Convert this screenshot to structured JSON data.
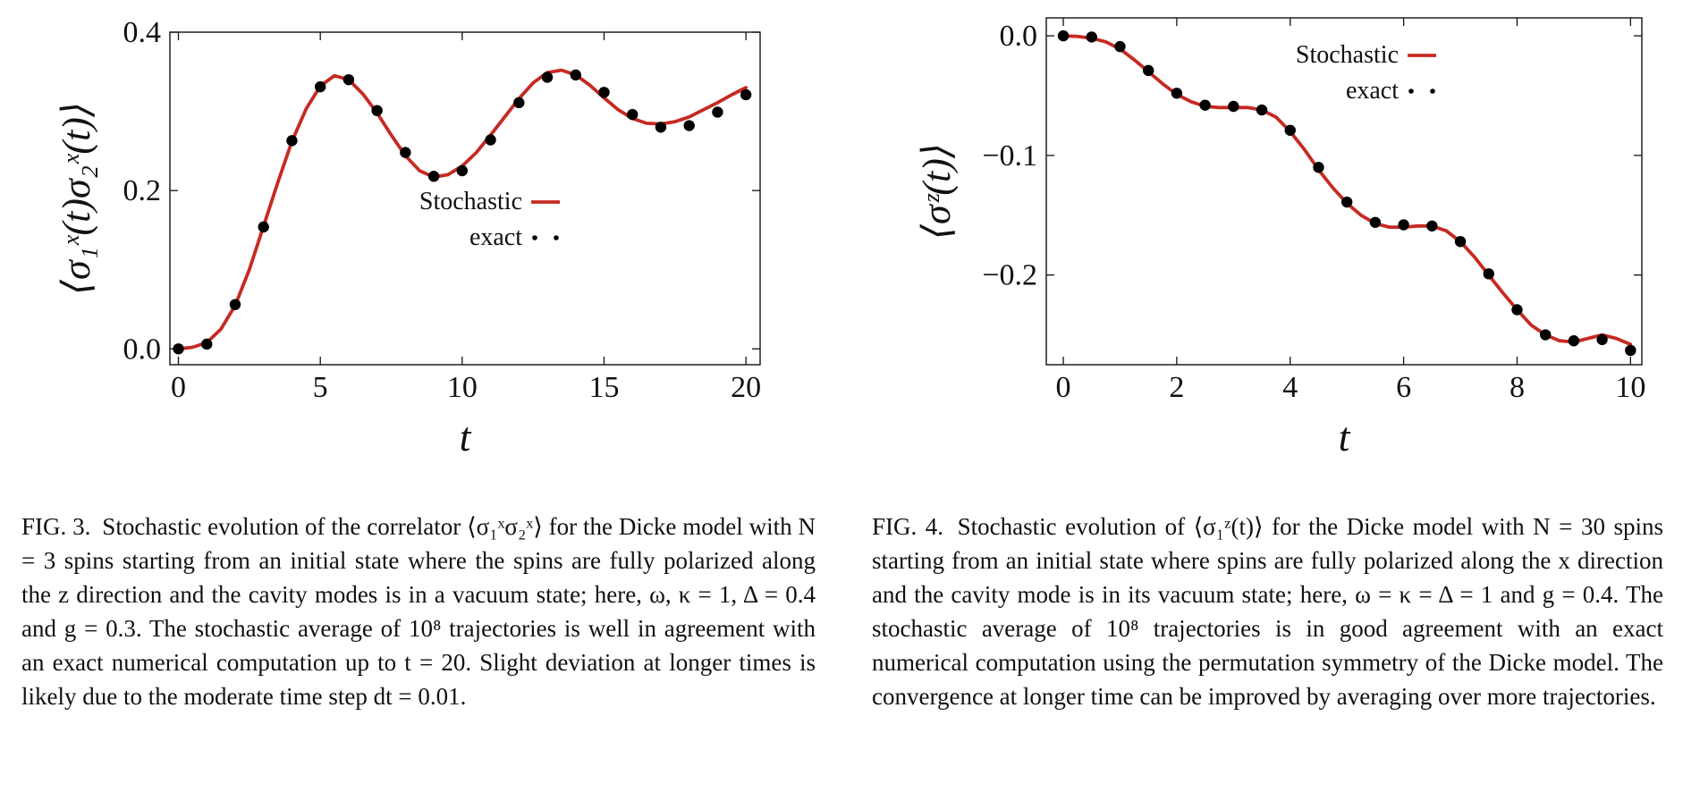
{
  "colors": {
    "stochastic": "#c62a22",
    "exact": "#000000",
    "axes": "#111111"
  },
  "figures": [
    {
      "id": "fig3",
      "ylabel": "⟨σ₁ˣ(t)σ₂ˣ(t)⟩",
      "caption": {
        "label": "FIG. 3.",
        "text": "Stochastic evolution of the correlator ⟨σ₁ˣσ₂ˣ⟩ for the Dicke model with N = 3 spins starting from an initial state where the spins are fully polarized along the z direction and the cavity modes is in a vacuum state; here, ω, κ = 1, Δ = 0.4 and g = 0.3. The stochastic average of 10⁸ trajectories is well in agreement with an exact numerical computation up to t = 20. Slight deviation at longer times is likely due to the moderate time step dt = 0.01."
      }
    },
    {
      "id": "fig4",
      "ylabel": "⟨σᶻ(t)⟩",
      "caption": {
        "label": "FIG. 4.",
        "text": "Stochastic evolution of ⟨σ₁ᶻ(t)⟩ for the Dicke model with N = 30 spins starting from an initial state where spins are fully polarized along the x direction and the cavity mode is in its vacuum state; here, ω = κ = Δ = 1 and g = 0.4. The stochastic average of 10⁸ trajectories is in good agreement with an exact numerical computation using the permutation symmetry of the Dicke model. The convergence at longer time can be improved by averaging over more trajectories."
      }
    }
  ],
  "chart_data": [
    {
      "type": "line",
      "xlabel": "t",
      "ylabel": "⟨σ₁ˣ(t)σ₂ˣ(t)⟩",
      "xlim": [
        -0.3,
        20.5
      ],
      "ylim": [
        -0.02,
        0.4
      ],
      "xticks": [
        0,
        5,
        10,
        15,
        20
      ],
      "xtick_labels": [
        "0",
        "5",
        "10",
        "15",
        "20"
      ],
      "yticks": [
        0.0,
        0.2,
        0.4
      ],
      "ytick_labels": [
        "0.0",
        "0.2",
        "0.4"
      ],
      "grid": false,
      "legend_position": "right-middle",
      "series": [
        {
          "name": "Stochastic",
          "style": "line",
          "x": [
            0,
            0.5,
            1,
            1.5,
            2,
            2.5,
            3,
            3.5,
            4,
            4.5,
            5,
            5.5,
            6,
            6.5,
            7,
            7.5,
            8,
            8.5,
            9,
            9.5,
            10,
            10.5,
            11,
            11.5,
            12,
            12.5,
            13,
            13.5,
            14,
            14.5,
            15,
            15.5,
            16,
            16.5,
            17,
            17.5,
            18,
            18.5,
            19,
            19.5,
            20
          ],
          "y": [
            0.0,
            0.002,
            0.008,
            0.025,
            0.055,
            0.1,
            0.155,
            0.21,
            0.262,
            0.303,
            0.332,
            0.345,
            0.34,
            0.322,
            0.298,
            0.27,
            0.244,
            0.225,
            0.217,
            0.22,
            0.231,
            0.248,
            0.27,
            0.293,
            0.316,
            0.336,
            0.349,
            0.352,
            0.346,
            0.333,
            0.317,
            0.302,
            0.291,
            0.285,
            0.284,
            0.287,
            0.293,
            0.302,
            0.311,
            0.321,
            0.33
          ]
        },
        {
          "name": "exact",
          "style": "points",
          "x": [
            0,
            1,
            2,
            3,
            4,
            5,
            6,
            7,
            8,
            9,
            10,
            11,
            12,
            13,
            14,
            15,
            16,
            17,
            18,
            19,
            20
          ],
          "y": [
            0.0,
            0.006,
            0.056,
            0.154,
            0.263,
            0.331,
            0.34,
            0.301,
            0.248,
            0.218,
            0.225,
            0.264,
            0.311,
            0.343,
            0.346,
            0.324,
            0.296,
            0.28,
            0.282,
            0.299,
            0.321
          ]
        }
      ]
    },
    {
      "type": "line",
      "xlabel": "t",
      "ylabel": "⟨σᶻ(t)⟩",
      "xlim": [
        -0.3,
        10.2
      ],
      "ylim": [
        -0.275,
        0.015
      ],
      "xticks": [
        0,
        2,
        4,
        6,
        8,
        10
      ],
      "xtick_labels": [
        "0",
        "2",
        "4",
        "6",
        "8",
        "10"
      ],
      "yticks": [
        0.0,
        -0.1,
        -0.2
      ],
      "ytick_labels": [
        "0.0",
        "−0.1",
        "−0.2"
      ],
      "grid": false,
      "legend_position": "top-right",
      "series": [
        {
          "name": "Stochastic",
          "style": "line",
          "x": [
            0,
            0.25,
            0.5,
            0.75,
            1,
            1.25,
            1.5,
            1.75,
            2,
            2.25,
            2.5,
            2.75,
            3,
            3.25,
            3.5,
            3.75,
            4,
            4.25,
            4.5,
            4.75,
            5,
            5.25,
            5.5,
            5.75,
            6,
            6.25,
            6.5,
            6.75,
            7,
            7.25,
            7.5,
            7.75,
            8,
            8.25,
            8.5,
            8.75,
            9,
            9.25,
            9.5,
            9.75,
            10
          ],
          "y": [
            0.0,
            -0.0005,
            -0.002,
            -0.005,
            -0.011,
            -0.02,
            -0.03,
            -0.04,
            -0.049,
            -0.055,
            -0.059,
            -0.06,
            -0.06,
            -0.06,
            -0.062,
            -0.068,
            -0.08,
            -0.095,
            -0.112,
            -0.127,
            -0.14,
            -0.15,
            -0.157,
            -0.16,
            -0.16,
            -0.159,
            -0.159,
            -0.163,
            -0.172,
            -0.185,
            -0.2,
            -0.215,
            -0.229,
            -0.242,
            -0.25,
            -0.255,
            -0.256,
            -0.253,
            -0.25,
            -0.253,
            -0.258
          ]
        },
        {
          "name": "exact",
          "style": "points",
          "x": [
            0,
            0.5,
            1,
            1.5,
            2,
            2.5,
            3,
            3.5,
            4,
            4.5,
            5,
            5.5,
            6,
            6.5,
            7,
            7.5,
            8,
            8.5,
            9,
            9.5,
            10
          ],
          "y": [
            0.0,
            -0.001,
            -0.009,
            -0.029,
            -0.048,
            -0.058,
            -0.059,
            -0.062,
            -0.079,
            -0.11,
            -0.139,
            -0.156,
            -0.158,
            -0.159,
            -0.172,
            -0.199,
            -0.229,
            -0.25,
            -0.255,
            -0.254,
            -0.263
          ]
        }
      ]
    }
  ]
}
